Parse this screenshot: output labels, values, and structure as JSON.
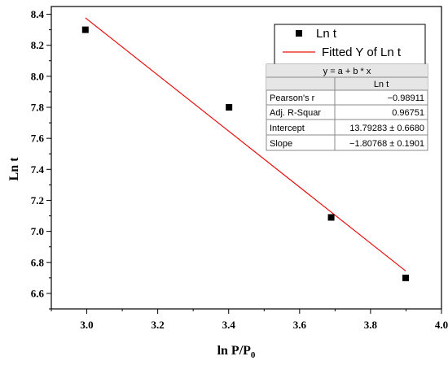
{
  "chart_data": {
    "type": "scatter",
    "xlabel_main": "ln P/P",
    "xlabel_sub": "0",
    "ylabel": "Ln t",
    "xlim": [
      2.9,
      4.0
    ],
    "ylim": [
      6.5,
      8.45
    ],
    "x_ticks": [
      3.0,
      3.2,
      3.4,
      3.6,
      3.8,
      4.0
    ],
    "x_tick_labels": [
      "3.0",
      "3.2",
      "3.4",
      "3.6",
      "3.8",
      "4.0"
    ],
    "y_ticks": [
      6.6,
      6.8,
      7.0,
      7.2,
      7.4,
      7.6,
      7.8,
      8.0,
      8.2,
      8.4
    ],
    "y_tick_labels": [
      "6.6",
      "6.8",
      "7.0",
      "7.2",
      "7.4",
      "7.6",
      "7.8",
      "8.0",
      "8.2",
      "8.4"
    ],
    "grid": false,
    "legend_placement": "top-right",
    "series": [
      {
        "name": "Ln t",
        "kind": "scatter",
        "marker": "square",
        "color": "#000000",
        "x": [
          2.996,
          3.401,
          3.689,
          3.899
        ],
        "y": [
          8.3,
          7.8,
          7.09,
          6.7
        ]
      },
      {
        "name": "Fitted Y of Ln t",
        "kind": "line",
        "color": "#e8100f",
        "x": [
          2.996,
          3.899
        ],
        "y": [
          8.3769,
          6.7447
        ]
      }
    ],
    "stats_table": {
      "equation": "y = a + b * x",
      "column_header": "Ln t",
      "rows": [
        {
          "label": "Pearson's r",
          "value": "−0.98911"
        },
        {
          "label": "Adj. R-Squar",
          "value": "0.96751"
        },
        {
          "label": "Intercept",
          "value": "13.79283 ± 0.6680"
        },
        {
          "label": "Slope",
          "value": "−1.80768 ± 0.1901"
        }
      ]
    }
  }
}
